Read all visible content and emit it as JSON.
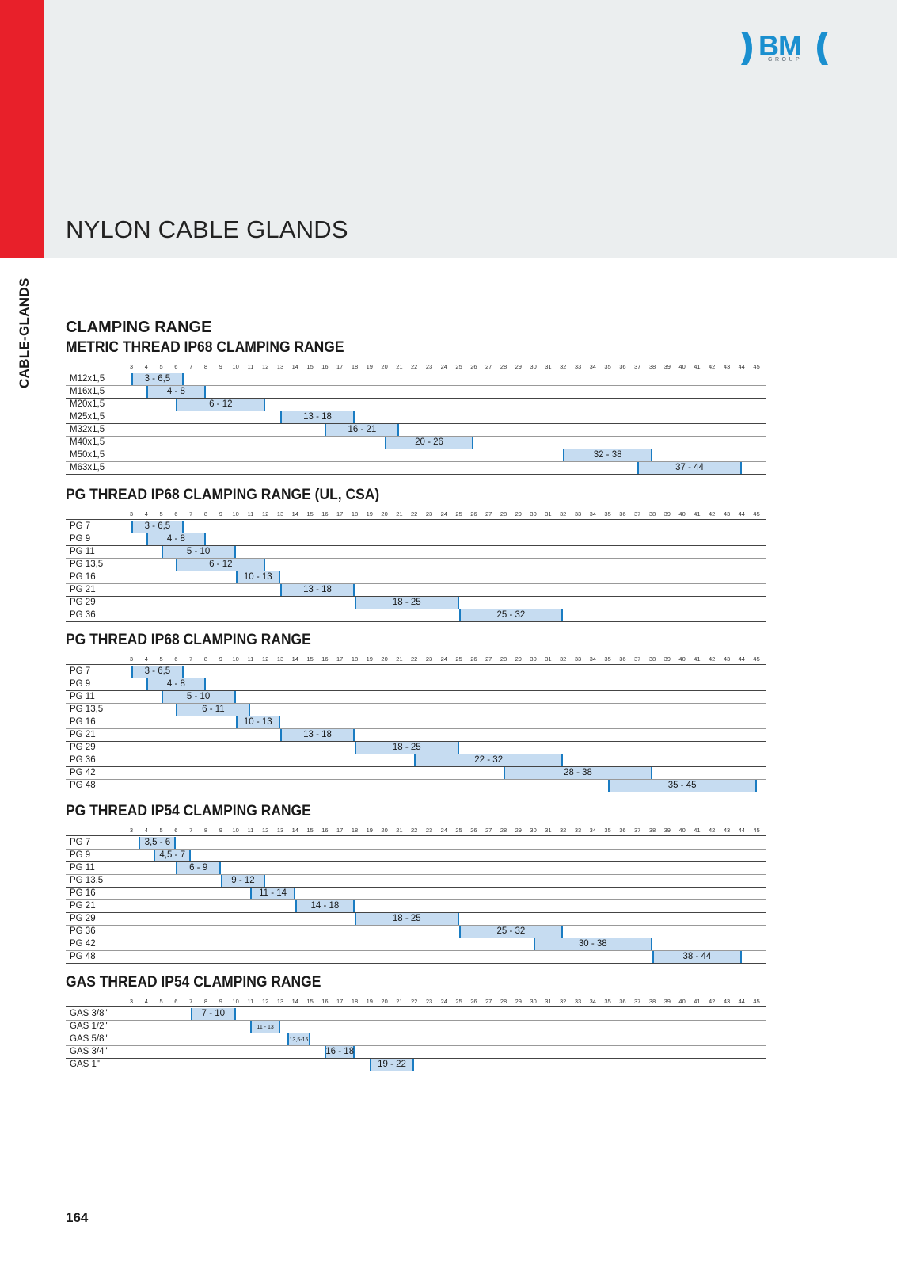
{
  "side_label": "CABLE-GLANDS",
  "page_title": "NYLON CABLE GLANDS",
  "main_heading": "CLAMPING RANGE",
  "page_number": "164",
  "logo": {
    "main": "BM",
    "sub": "GROUP"
  },
  "colors": {
    "red": "#e8202a",
    "bar": "#c6dcf1",
    "bar_edge": "#1a7cc2",
    "logo_blue": "#1a8fcf"
  },
  "axis_ticks": [
    3,
    4,
    5,
    6,
    7,
    8,
    9,
    10,
    11,
    12,
    13,
    14,
    15,
    16,
    17,
    18,
    19,
    20,
    21,
    22,
    23,
    24,
    25,
    26,
    27,
    28,
    29,
    30,
    31,
    32,
    33,
    34,
    35,
    36,
    37,
    38,
    39,
    40,
    41,
    42,
    43,
    44,
    45
  ],
  "sections": [
    {
      "title": "METRIC THREAD IP68 CLAMPING RANGE",
      "rows": [
        {
          "label": "M12x1,5",
          "min": 3,
          "max": 6.5,
          "text": "3 - 6,5"
        },
        {
          "label": "M16x1,5",
          "min": 4,
          "max": 8,
          "text": "4 - 8"
        },
        {
          "label": "M20x1,5",
          "min": 6,
          "max": 12,
          "text": "6 - 12"
        },
        {
          "label": "M25x1,5",
          "min": 13,
          "max": 18,
          "text": "13 - 18"
        },
        {
          "label": "M32x1,5",
          "min": 16,
          "max": 21,
          "text": "16 - 21"
        },
        {
          "label": "M40x1,5",
          "min": 20,
          "max": 26,
          "text": "20 - 26"
        },
        {
          "label": "M50x1,5",
          "min": 32,
          "max": 38,
          "text": "32 - 38"
        },
        {
          "label": "M63x1,5",
          "min": 37,
          "max": 44,
          "text": "37 - 44"
        }
      ]
    },
    {
      "title": "PG THREAD IP68 CLAMPING RANGE (UL, CSA)",
      "rows": [
        {
          "label": "PG 7",
          "min": 3,
          "max": 6.5,
          "text": "3 - 6,5"
        },
        {
          "label": "PG 9",
          "min": 4,
          "max": 8,
          "text": "4 - 8"
        },
        {
          "label": "PG 11",
          "min": 5,
          "max": 10,
          "text": "5 - 10"
        },
        {
          "label": "PG 13,5",
          "min": 6,
          "max": 12,
          "text": "6 - 12"
        },
        {
          "label": "PG 16",
          "min": 10,
          "max": 13,
          "text": "10 - 13"
        },
        {
          "label": "PG 21",
          "min": 13,
          "max": 18,
          "text": "13 - 18"
        },
        {
          "label": "PG 29",
          "min": 18,
          "max": 25,
          "text": "18 - 25"
        },
        {
          "label": "PG 36",
          "min": 25,
          "max": 32,
          "text": "25 - 32"
        }
      ]
    },
    {
      "title": "PG THREAD IP68 CLAMPING RANGE",
      "rows": [
        {
          "label": "PG 7",
          "min": 3,
          "max": 6.5,
          "text": "3 - 6,5"
        },
        {
          "label": "PG 9",
          "min": 4,
          "max": 8,
          "text": "4 - 8"
        },
        {
          "label": "PG 11",
          "min": 5,
          "max": 10,
          "text": "5 - 10"
        },
        {
          "label": "PG 13,5",
          "min": 6,
          "max": 11,
          "text": "6 - 11"
        },
        {
          "label": "PG 16",
          "min": 10,
          "max": 13,
          "text": "10 - 13"
        },
        {
          "label": "PG 21",
          "min": 13,
          "max": 18,
          "text": "13 - 18"
        },
        {
          "label": "PG 29",
          "min": 18,
          "max": 25,
          "text": "18 - 25"
        },
        {
          "label": "PG 36",
          "min": 22,
          "max": 32,
          "text": "22 - 32"
        },
        {
          "label": "PG 42",
          "min": 28,
          "max": 38,
          "text": "28 - 38"
        },
        {
          "label": "PG 48",
          "min": 35,
          "max": 45,
          "text": "35 - 45"
        }
      ]
    },
    {
      "title": "PG THREAD IP54 CLAMPING RANGE",
      "rows": [
        {
          "label": "PG 7",
          "min": 3.5,
          "max": 6,
          "text": "3,5 - 6"
        },
        {
          "label": "PG 9",
          "min": 4.5,
          "max": 7,
          "text": "4,5 - 7"
        },
        {
          "label": "PG 11",
          "min": 6,
          "max": 9,
          "text": "6 - 9"
        },
        {
          "label": "PG 13,5",
          "min": 9,
          "max": 12,
          "text": "9 - 12"
        },
        {
          "label": "PG 16",
          "min": 11,
          "max": 14,
          "text": "11 - 14"
        },
        {
          "label": "PG 21",
          "min": 14,
          "max": 18,
          "text": "14 - 18"
        },
        {
          "label": "PG 29",
          "min": 18,
          "max": 25,
          "text": "18 - 25"
        },
        {
          "label": "PG 36",
          "min": 25,
          "max": 32,
          "text": "25 - 32"
        },
        {
          "label": "PG 42",
          "min": 30,
          "max": 38,
          "text": "30 - 38"
        },
        {
          "label": "PG 48",
          "min": 38,
          "max": 44,
          "text": "38 - 44"
        }
      ]
    },
    {
      "title": "GAS THREAD IP54 CLAMPING RANGE",
      "rows": [
        {
          "label": "GAS 3/8\"",
          "min": 7,
          "max": 10,
          "text": "7 - 10"
        },
        {
          "label": "GAS 1/2\"",
          "min": 11,
          "max": 13,
          "text": "11 - 13",
          "small": true
        },
        {
          "label": "GAS 5/8\"",
          "min": 13.5,
          "max": 15,
          "text": "13,5-15",
          "small": true
        },
        {
          "label": "GAS 3/4\"",
          "min": 16,
          "max": 18,
          "text": "16 - 18"
        },
        {
          "label": "GAS 1\"",
          "min": 19,
          "max": 22,
          "text": "19 - 22"
        }
      ]
    }
  ]
}
